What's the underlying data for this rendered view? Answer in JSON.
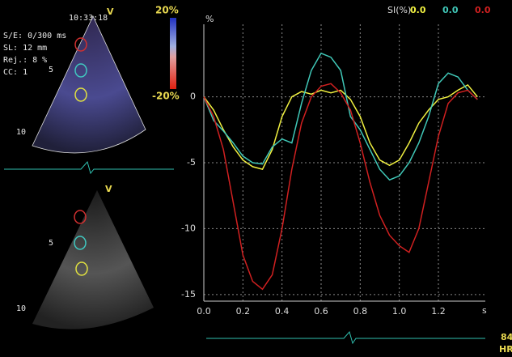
{
  "overlay": {
    "time": "10:33:18",
    "settings": [
      "S/E:  0/300 ms",
      "SL: 12 mm",
      "Rej.: 8 %",
      "CC: 1"
    ],
    "view_top": "V",
    "view_bottom": "V",
    "depth_top": [
      "5",
      "10"
    ],
    "depth_bottom": [
      "5",
      "10"
    ],
    "scale_top": "20%",
    "scale_bottom": "-20%",
    "heart_rate": "84",
    "hr_label": "HR"
  },
  "chart_data": {
    "type": "line",
    "legend_title": "SI(%)",
    "xlabel": "s",
    "ylabel": "%",
    "x": [
      0,
      0.05,
      0.1,
      0.15,
      0.2,
      0.25,
      0.3,
      0.35,
      0.4,
      0.45,
      0.5,
      0.55,
      0.6,
      0.65,
      0.7,
      0.75,
      0.8,
      0.85,
      0.9,
      0.95,
      1.0,
      1.05,
      1.1,
      1.15,
      1.2,
      1.25,
      1.3,
      1.35,
      1.4
    ],
    "series": [
      {
        "name": "0.0",
        "color": "#f0f040",
        "values": [
          0,
          -1,
          -2.5,
          -3.8,
          -4.8,
          -5.3,
          -5.5,
          -4,
          -1.5,
          0,
          0.4,
          0.2,
          0.5,
          0.3,
          0.5,
          -0.2,
          -1.5,
          -3.5,
          -4.8,
          -5.2,
          -4.8,
          -3.5,
          -2,
          -1,
          -0.2,
          0,
          0.5,
          0.9,
          0
        ]
      },
      {
        "name": "0.0",
        "color": "#40c8b8",
        "values": [
          0,
          -1.8,
          -2.6,
          -3.5,
          -4.5,
          -5,
          -5.1,
          -3.8,
          -3.2,
          -3.5,
          -0.5,
          2,
          3.3,
          3,
          2,
          -1.5,
          -2.5,
          -4,
          -5.5,
          -6.3,
          -6,
          -5,
          -3.5,
          -1.5,
          1,
          1.8,
          1.5,
          0.5,
          -0.2
        ]
      },
      {
        "name": "0.0",
        "color": "#d02020",
        "values": [
          0,
          -1.5,
          -4,
          -8,
          -12,
          -14,
          -14.6,
          -13.5,
          -10,
          -5.5,
          -2,
          0,
          0.8,
          1,
          0.3,
          -1,
          -3.5,
          -6.5,
          -9,
          -10.5,
          -11.3,
          -11.8,
          -10,
          -6.5,
          -3,
          -0.5,
          0.3,
          0.5,
          -0.2
        ]
      }
    ],
    "xlim": [
      0,
      1.44
    ],
    "ylim": [
      -15.5,
      5.5
    ],
    "xticks": [
      {
        "value": 0,
        "label": "0.0"
      },
      0.2,
      0.4,
      0.6,
      0.8,
      {
        "value": 1,
        "label": "1.0"
      },
      1.2
    ],
    "yticks": [
      0,
      -5,
      -10,
      -15
    ],
    "grid": true
  }
}
